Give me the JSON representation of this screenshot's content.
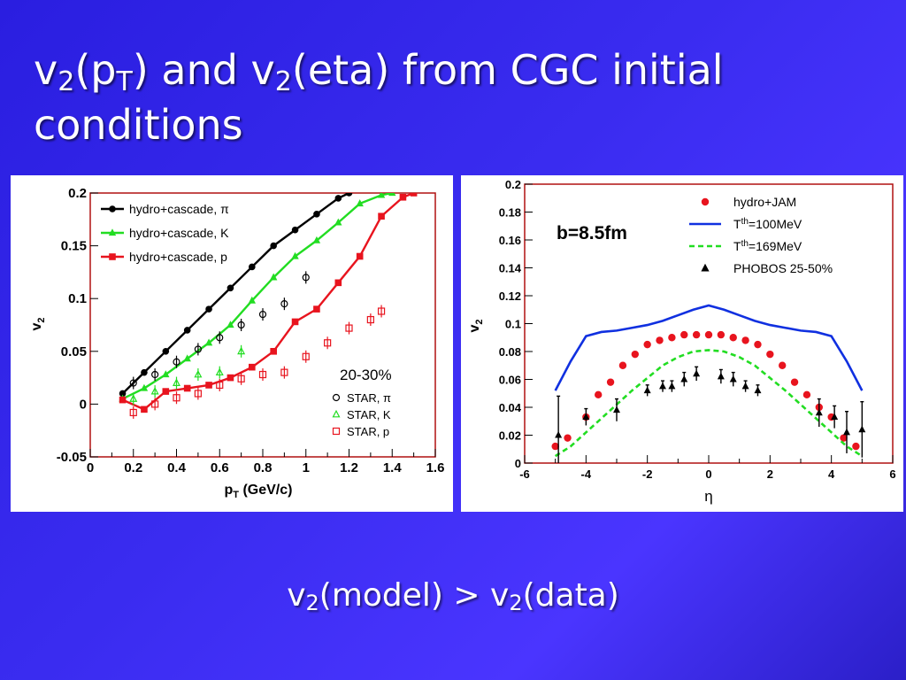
{
  "slide": {
    "title_parts": [
      "v",
      "2",
      "(p",
      "T",
      ") and v",
      "2",
      "(eta) from CGC initial conditions"
    ],
    "subtitle_parts": [
      "v",
      "2",
      "(model) > v",
      "2",
      "(data)"
    ]
  },
  "colors": {
    "black": "#000000",
    "green": "#22dd22",
    "red": "#e8141e",
    "blue": "#1030e0",
    "frame": "#b01010"
  },
  "chart_data": [
    {
      "type": "line",
      "title": "",
      "xlabel_main": "p",
      "xlabel_sub": "T",
      "xlabel_rest": " (GeV/c)",
      "ylabel_main": "v",
      "ylabel_sub": "2",
      "xlim": [
        0,
        1.6
      ],
      "ylim": [
        -0.05,
        0.2
      ],
      "xticks": [
        "0",
        "0.2",
        "0.4",
        "0.6",
        "0.8",
        "1",
        "1.2",
        "1.4",
        "1.6"
      ],
      "yticks": [
        "-0.05",
        "0",
        "0.05",
        "0.1",
        "0.15",
        "0.2"
      ],
      "annotation": "20-30%",
      "legend_placement": "top-left",
      "series": [
        {
          "name_text": "hydro+cascade, ",
          "name_symbol": "π",
          "kind": "line-marker",
          "color": "#000000",
          "marker": "circle-filled",
          "x": [
            0.15,
            0.25,
            0.35,
            0.45,
            0.55,
            0.65,
            0.75,
            0.85,
            0.95,
            1.05,
            1.15,
            1.2
          ],
          "y": [
            0.01,
            0.03,
            0.05,
            0.07,
            0.09,
            0.11,
            0.13,
            0.15,
            0.165,
            0.18,
            0.195,
            0.2
          ]
        },
        {
          "name_text": "hydro+cascade, K",
          "kind": "line-marker",
          "color": "#22dd22",
          "marker": "triangle-filled",
          "x": [
            0.15,
            0.25,
            0.35,
            0.45,
            0.55,
            0.65,
            0.75,
            0.85,
            0.95,
            1.05,
            1.15,
            1.25,
            1.35,
            1.4
          ],
          "y": [
            0.005,
            0.015,
            0.028,
            0.043,
            0.058,
            0.075,
            0.098,
            0.12,
            0.14,
            0.155,
            0.172,
            0.19,
            0.198,
            0.2
          ]
        },
        {
          "name_text": "hydro+cascade, p",
          "kind": "line-marker",
          "color": "#e8141e",
          "marker": "square-filled",
          "x": [
            0.15,
            0.25,
            0.35,
            0.45,
            0.55,
            0.65,
            0.75,
            0.85,
            0.95,
            1.05,
            1.15,
            1.25,
            1.35,
            1.45,
            1.5
          ],
          "y": [
            0.004,
            -0.005,
            0.012,
            0.015,
            0.018,
            0.025,
            0.035,
            0.05,
            0.078,
            0.09,
            0.115,
            0.14,
            0.178,
            0.196,
            0.2
          ]
        },
        {
          "name_text": "STAR, ",
          "name_symbol": "π",
          "kind": "marker-only",
          "color": "#000000",
          "marker": "circle-open",
          "x": [
            0.2,
            0.3,
            0.4,
            0.5,
            0.6,
            0.7,
            0.8,
            0.9,
            1.0
          ],
          "y": [
            0.02,
            0.028,
            0.04,
            0.052,
            0.063,
            0.075,
            0.085,
            0.095,
            0.12
          ],
          "note": "two extra points"
        },
        {
          "name_text": "STAR, K",
          "kind": "marker-only",
          "color": "#22dd22",
          "marker": "triangle-open",
          "x": [
            0.2,
            0.3,
            0.4,
            0.5,
            0.6,
            0.7
          ],
          "y": [
            0.005,
            0.012,
            0.02,
            0.028,
            0.03,
            0.05
          ]
        },
        {
          "name_text": "STAR, p",
          "kind": "marker-only",
          "color": "#e8141e",
          "marker": "square-open",
          "x": [
            0.2,
            0.3,
            0.4,
            0.5,
            0.6,
            0.7,
            0.8,
            0.9,
            1.0,
            1.1,
            1.2,
            1.3,
            1.35
          ],
          "y": [
            -0.008,
            0.0,
            0.006,
            0.01,
            0.018,
            0.024,
            0.028,
            0.03,
            0.045,
            0.058,
            0.072,
            0.08,
            0.088
          ]
        }
      ]
    },
    {
      "type": "line",
      "title": "",
      "xlabel_main": "η",
      "ylabel_main": "v",
      "ylabel_sub": "2",
      "xlim": [
        -6,
        6
      ],
      "ylim": [
        0,
        0.2
      ],
      "xticks": [
        "-6",
        "-4",
        "-2",
        "0",
        "2",
        "4",
        "6"
      ],
      "yticks": [
        "0",
        "0.02",
        "0.04",
        "0.06",
        "0.08",
        "0.1",
        "0.12",
        "0.14",
        "0.16",
        "0.18",
        "0.2"
      ],
      "annotation": "b=8.5fm",
      "legend_placement": "top-right",
      "series": [
        {
          "name": "hydro+JAM",
          "kind": "marker-only",
          "color": "#e8141e",
          "marker": "circle-filled",
          "x": [
            -5.0,
            -4.6,
            -4.0,
            -3.6,
            -3.2,
            -2.8,
            -2.4,
            -2.0,
            -1.6,
            -1.2,
            -0.8,
            -0.4,
            0.0,
            0.4,
            0.8,
            1.2,
            1.6,
            2.0,
            2.4,
            2.8,
            3.2,
            3.6,
            4.0,
            4.4,
            4.8
          ],
          "y": [
            0.012,
            0.018,
            0.033,
            0.049,
            0.058,
            0.07,
            0.078,
            0.085,
            0.088,
            0.09,
            0.092,
            0.092,
            0.092,
            0.092,
            0.09,
            0.088,
            0.085,
            0.078,
            0.07,
            0.058,
            0.049,
            0.04,
            0.033,
            0.018,
            0.012
          ]
        },
        {
          "name_pre": "T",
          "name_sup": "th",
          "name_post": "=100MeV",
          "kind": "line",
          "color": "#1030e0",
          "dash": "solid",
          "x": [
            -5,
            -4.5,
            -4,
            -3.5,
            -3,
            -2.5,
            -2,
            -1.5,
            -1,
            -0.5,
            0,
            0.5,
            1,
            1.5,
            2,
            2.5,
            3,
            3.5,
            4,
            4.5,
            5
          ],
          "y": [
            0.052,
            0.073,
            0.091,
            0.094,
            0.095,
            0.097,
            0.099,
            0.102,
            0.106,
            0.11,
            0.113,
            0.11,
            0.106,
            0.102,
            0.099,
            0.097,
            0.095,
            0.094,
            0.091,
            0.073,
            0.052
          ]
        },
        {
          "name_pre": "T",
          "name_sup": "th",
          "name_post": "=169MeV",
          "kind": "line",
          "color": "#22dd22",
          "dash": "dashed",
          "x": [
            -5,
            -4.5,
            -4,
            -3.5,
            -3,
            -2.5,
            -2,
            -1.5,
            -1,
            -0.5,
            0,
            0.5,
            1,
            1.5,
            2,
            2.5,
            3,
            3.5,
            4,
            4.5,
            5
          ],
          "y": [
            0.005,
            0.012,
            0.022,
            0.032,
            0.042,
            0.052,
            0.061,
            0.07,
            0.076,
            0.08,
            0.081,
            0.08,
            0.076,
            0.07,
            0.061,
            0.052,
            0.042,
            0.032,
            0.022,
            0.012,
            0.005
          ]
        },
        {
          "name": "PHOBOS 25-50%",
          "kind": "marker-errorbar",
          "color": "#000000",
          "marker": "triangle-filled",
          "x": [
            -4.9,
            -4.0,
            -3.0,
            -2.0,
            -1.5,
            -1.2,
            -0.8,
            -0.4,
            0.4,
            0.8,
            1.2,
            1.6,
            3.6,
            4.1,
            4.5,
            5.0
          ],
          "y": [
            0.02,
            0.033,
            0.038,
            0.052,
            0.055,
            0.055,
            0.06,
            0.064,
            0.062,
            0.06,
            0.055,
            0.052,
            0.036,
            0.033,
            0.022,
            0.024
          ],
          "err": [
            0.028,
            0.006,
            0.008,
            0.004,
            0.004,
            0.004,
            0.005,
            0.005,
            0.005,
            0.005,
            0.004,
            0.004,
            0.01,
            0.008,
            0.015,
            0.02
          ]
        }
      ]
    }
  ]
}
